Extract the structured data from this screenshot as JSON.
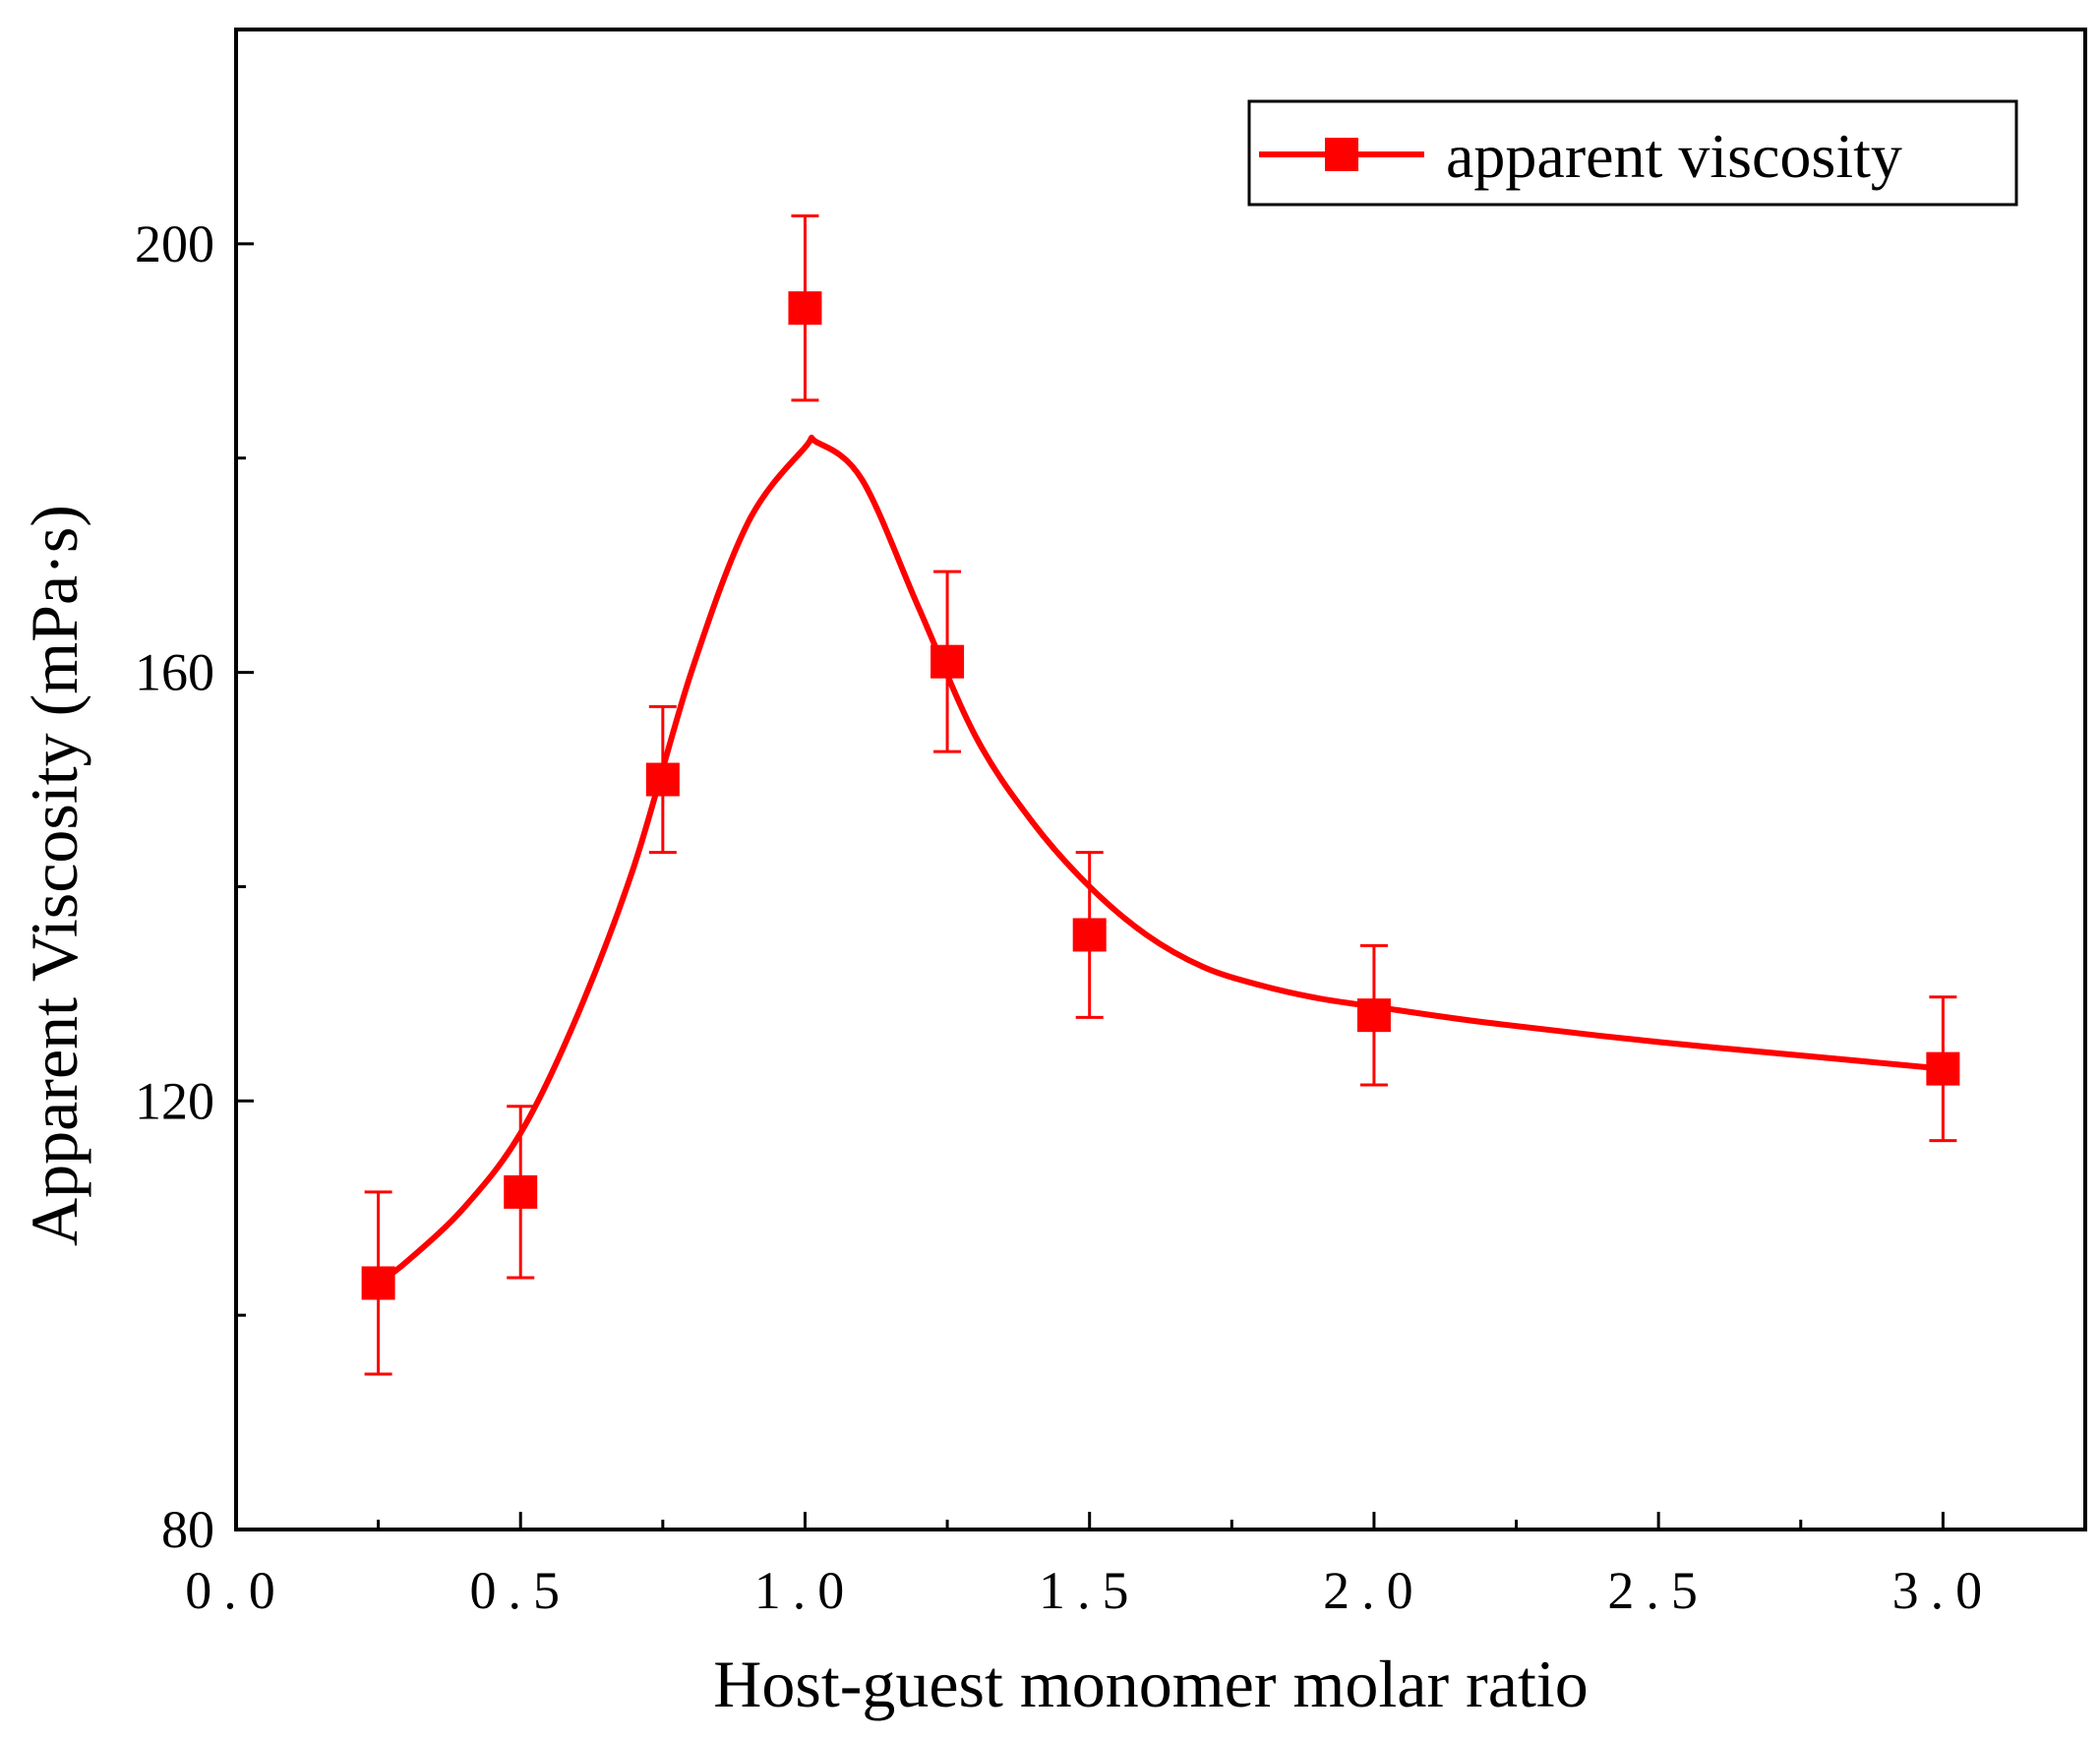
{
  "chart_data": {
    "type": "line",
    "title": "",
    "xlabel": "Host-guest monomer molar ratio",
    "ylabel": "Apparent Viscosity (mPa·s)",
    "xlim": [
      0,
      3.25
    ],
    "ylim": [
      80,
      220
    ],
    "x_ticks": [
      0,
      0.5,
      1.0,
      1.5,
      2.0,
      2.5,
      3.0
    ],
    "x_tick_labels": [
      "0.0",
      "0.5",
      "1.0",
      "1.5",
      "2.0",
      "2.5",
      "3.0"
    ],
    "y_ticks": [
      80,
      120,
      160,
      200
    ],
    "y_tick_labels": [
      "80",
      "120",
      "160",
      "200"
    ],
    "grid": false,
    "legend_position": "top-right",
    "series": [
      {
        "name": "apparent viscosity",
        "color": "#ff0000",
        "marker": "square",
        "x": [
          0.25,
          0.5,
          0.75,
          1.0,
          1.25,
          1.5,
          2.0,
          3.0
        ],
        "y": [
          103,
          111.5,
          150,
          194,
          161,
          135.5,
          128,
          123
        ],
        "error": [
          8.5,
          8.0,
          6.8,
          8.6,
          8.4,
          7.7,
          6.5,
          6.7
        ],
        "fit_curve": {
          "x": [
            0.25,
            0.3,
            0.4,
            0.5,
            0.6,
            0.7,
            0.8,
            0.9,
            1.0,
            1.02,
            1.1,
            1.2,
            1.3,
            1.4,
            1.5,
            1.6,
            1.7,
            1.8,
            1.9,
            2.0,
            2.2,
            2.5,
            2.8,
            3.0
          ],
          "y": [
            103,
            105,
            110,
            117,
            128,
            142,
            160,
            174,
            181,
            181.5,
            178,
            166,
            154,
            146,
            140,
            135.5,
            132.5,
            130.8,
            129.6,
            128.8,
            127.3,
            125.5,
            124.0,
            123
          ]
        }
      }
    ]
  }
}
